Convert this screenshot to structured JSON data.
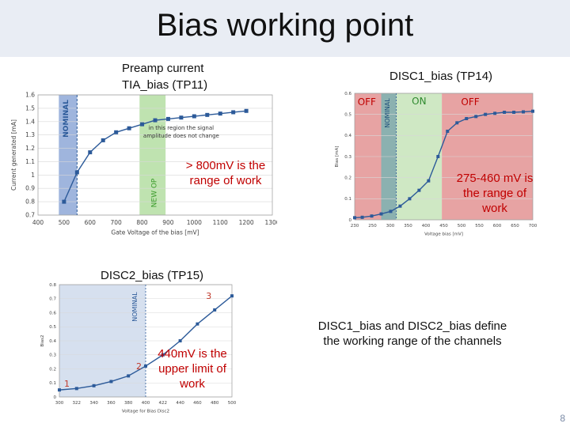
{
  "slide": {
    "title": "Bias working point",
    "page_number": "8",
    "summary": "DISC1_bias and DISC2_bias define the working range of the channels"
  },
  "chart_data": [
    {
      "type": "line",
      "caption_line1": "Preamp current",
      "caption_line2": "TIA_bias (TP11)",
      "xlabel": "Gate Voltage of the bias [mV]",
      "ylabel": "Current generated [mA]",
      "x_ticks": [
        "400",
        "500",
        "600",
        "700",
        "800",
        "900",
        "1000",
        "1100",
        "1200",
        "1300"
      ],
      "y_ticks": [
        "0.7",
        "0.8",
        "0.9",
        "1",
        "1.1",
        "1.2",
        "1.3",
        "1.4",
        "1.5",
        "1.6"
      ],
      "xlim": [
        400,
        1300
      ],
      "ylim": [
        0.7,
        1.6
      ],
      "x": [
        500,
        550,
        600,
        650,
        700,
        750,
        800,
        850,
        900,
        950,
        1000,
        1050,
        1100,
        1150,
        1200
      ],
      "values": [
        0.8,
        1.02,
        1.17,
        1.26,
        1.32,
        1.35,
        1.38,
        1.41,
        1.42,
        1.43,
        1.44,
        1.45,
        1.46,
        1.47,
        1.48
      ],
      "regions": [
        {
          "label": "NOMINAL",
          "from": 480,
          "to": 550,
          "color": "#9fb5dd"
        },
        {
          "label": "NEW OP",
          "from": 790,
          "to": 890,
          "color": "#bfe3b0"
        }
      ],
      "annotation_line1": "in this region the signal",
      "annotation_line2": "amplitude does not change",
      "note_line1": "> 800mV is the",
      "note_line2": "range of work",
      "line_color": "#2c5a99"
    },
    {
      "type": "line",
      "caption": "DISC1_bias (TP14)",
      "xlabel": "Voltage bias [mV]",
      "ylabel": "Bias [mA]",
      "x_ticks": [
        "230",
        "250",
        "300",
        "350",
        "400",
        "450",
        "500",
        "550",
        "600",
        "650",
        "700"
      ],
      "y_ticks": [
        "0",
        "0.1",
        "0.2",
        "0.3",
        "0.4",
        "0.5",
        "0.6"
      ],
      "xlim": [
        230,
        700
      ],
      "ylim": [
        0,
        0.6
      ],
      "x": [
        230,
        250,
        275,
        300,
        325,
        350,
        375,
        400,
        425,
        450,
        475,
        500,
        525,
        550,
        575,
        600,
        625,
        650,
        675,
        700
      ],
      "values": [
        0.01,
        0.012,
        0.018,
        0.028,
        0.04,
        0.065,
        0.1,
        0.14,
        0.185,
        0.3,
        0.42,
        0.46,
        0.48,
        0.49,
        0.5,
        0.505,
        0.51,
        0.51,
        0.512,
        0.515
      ],
      "regions": [
        {
          "label": "OFF",
          "from": 230,
          "to": 300,
          "color": "#e7a3a3"
        },
        {
          "label": "NOMINAL",
          "from": 300,
          "to": 340,
          "color": "#8bb1b0"
        },
        {
          "label": "ON",
          "from": 340,
          "to": 460,
          "color": "#cfe8c4"
        },
        {
          "label": "OFF",
          "from": 460,
          "to": 700,
          "color": "#e7a3a3"
        }
      ],
      "note_line1": "275-460 mV is",
      "note_line2": "the range of",
      "note_line3": "work",
      "line_color": "#2c5a99"
    },
    {
      "type": "line",
      "caption": "DISC2_bias (TP15)",
      "xlabel": "Voltage for Bias Disc2",
      "ylabel": "Bias2",
      "x_ticks": [
        "300",
        "322",
        "340",
        "360",
        "380",
        "400",
        "422",
        "440",
        "460",
        "480",
        "500"
      ],
      "y_ticks": [
        "0",
        "0.1",
        "0.2",
        "0.3",
        "0.4",
        "0.5",
        "0.6",
        "0.7",
        "0.8"
      ],
      "xlim": [
        300,
        500
      ],
      "ylim": [
        0,
        0.8
      ],
      "x": [
        300,
        320,
        340,
        360,
        380,
        400,
        420,
        440,
        460,
        480,
        500
      ],
      "values": [
        0.05,
        0.06,
        0.08,
        0.11,
        0.15,
        0.22,
        0.3,
        0.4,
        0.52,
        0.62,
        0.72
      ],
      "regions": [
        {
          "label": "",
          "from": 300,
          "to": 400,
          "color": "#d6e0ef"
        }
      ],
      "nominal_label": "NOMINAL",
      "markers": [
        "1",
        "2",
        "3"
      ],
      "note_line1": "440mV is the",
      "note_line2": "upper limit of",
      "note_line3": "work",
      "line_color": "#2c5a99"
    }
  ]
}
